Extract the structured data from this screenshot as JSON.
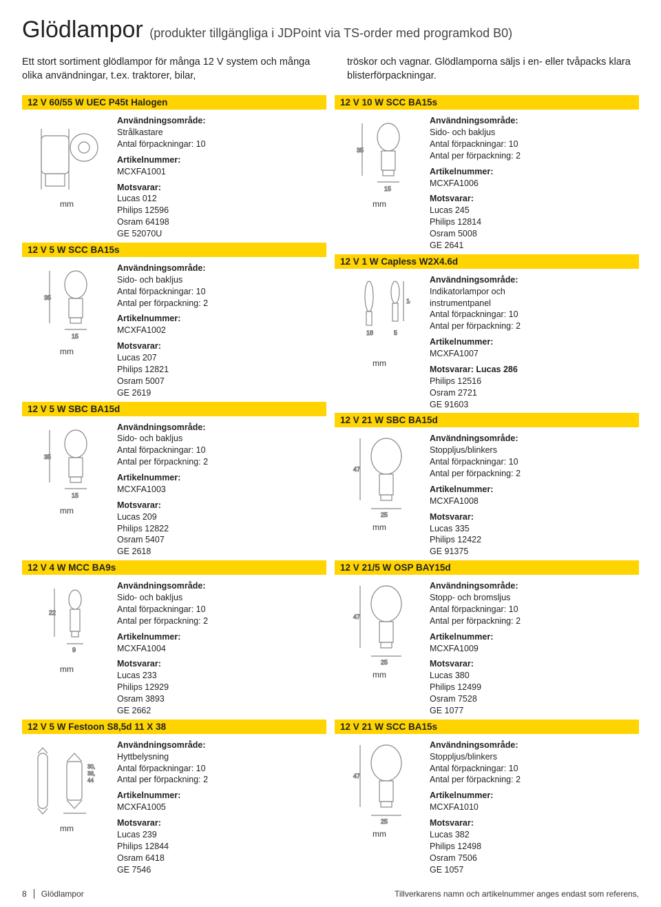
{
  "header": {
    "title": "Glödlampor",
    "subtitle": "(produkter tillgängliga i JDPoint via TS-order med programkod B0)"
  },
  "intro": {
    "left": "Ett stort sortiment glödlampor för många 12 V system och många olika användningar, t.ex. traktorer, bilar,",
    "right": "tröskor och vagnar. Glödlamporna säljs i en- eller tvåpacks klara blisterförpackningar."
  },
  "labels": {
    "usage": "Användningsområde:",
    "article": "Artikelnummer:",
    "equiv": "Motsvarar:",
    "unit": "mm"
  },
  "colors": {
    "accent": "#ffd400",
    "text": "#222222",
    "line": "#888888"
  },
  "left_products": [
    {
      "bar": "12 V 60/55 W UEC P45t Halogen",
      "usage": "Strålkastare\nAntal förpackningar: 10",
      "article": "MCXFA1001",
      "equiv": "Lucas 012\nPhilips 12596\nOsram 64198\nGE 52070U",
      "svg": "h4"
    },
    {
      "bar": "12 V 5 W SCC BA15s",
      "usage": "Sido- och bakljus\nAntal förpackningar: 10\nAntal per förpackning: 2",
      "article": "MCXFA1002",
      "equiv": "Lucas 207\nPhilips 12821\nOsram 5007\nGE 2619",
      "svg": "small_round"
    },
    {
      "bar": "12 V 5 W SBC BA15d",
      "usage": "Sido- och bakljus\nAntal förpackningar: 10\nAntal per förpackning: 2",
      "article": "MCXFA1003",
      "equiv": "Lucas 209\nPhilips 12822\nOsram 5407\nGE 2618",
      "svg": "small_round"
    },
    {
      "bar": "12 V 4 W MCC BA9s",
      "usage": "Sido- och bakljus\nAntal förpackningar: 10\nAntal per förpackning: 2",
      "article": "MCXFA1004",
      "equiv": "Lucas 233\nPhilips 12929\nOsram 3893\nGE 2662",
      "svg": "tiny_tube"
    },
    {
      "bar": "12 V 5 W Festoon S8,5d 11 X 38",
      "usage": "Hyttbelysning\nAntal förpackningar: 10\nAntal per förpackning: 2",
      "article": "MCXFA1005",
      "equiv": "Lucas 239\nPhilips 12844\nOsram 6418\nGE 7546",
      "svg": "festoon"
    }
  ],
  "right_products": [
    {
      "bar": "12 V 10 W SCC BA15s",
      "usage": "Sido- och bakljus\nAntal förpackningar: 10\nAntal per förpackning: 2",
      "article": "MCXFA1006",
      "equiv": "Lucas 245\nPhilips 12814\nOsram 5008\nGE 2641",
      "svg": "small_round"
    },
    {
      "bar": "12 V 1 W Capless W2X4.6d",
      "usage": "Indikatorlampor och\ninstrumentpanel\nAntal förpackningar: 10\nAntal per förpackning: 2",
      "article": "MCXFA1007",
      "equiv_prefix": "Motsvarar: Lucas 286",
      "equiv": "Philips 12516\nOsram 2721\nGE 91603",
      "svg": "capless"
    },
    {
      "bar": "12 V 21 W SBC BA15d",
      "usage": "Stoppljus/blinkers\nAntal förpackningar: 10\nAntal per förpackning: 2",
      "article": "MCXFA1008",
      "equiv": "Lucas 335\nPhilips 12422\nGE 91375",
      "svg": "big_round"
    },
    {
      "bar": "12 V 21/5 W OSP BAY15d",
      "usage": "Stopp- och bromsljus\nAntal förpackningar: 10\nAntal per förpackning: 2",
      "article": "MCXFA1009",
      "equiv": "Lucas 380\nPhilips 12499\nOsram 7528\nGE 1077",
      "svg": "big_round"
    },
    {
      "bar": "12 V 21 W SCC BA15s",
      "usage": "Stoppljus/blinkers\nAntal förpackningar: 10\nAntal per förpackning: 2",
      "article": "MCXFA1010",
      "equiv": "Lucas 382\nPhilips 12498\nOsram 7506\nGE 1057",
      "svg": "big_round"
    }
  ],
  "footer": {
    "page": "8",
    "section": "Glödlampor",
    "note": "Tillverkarens namn och artikelnummer anges endast som referens,"
  }
}
